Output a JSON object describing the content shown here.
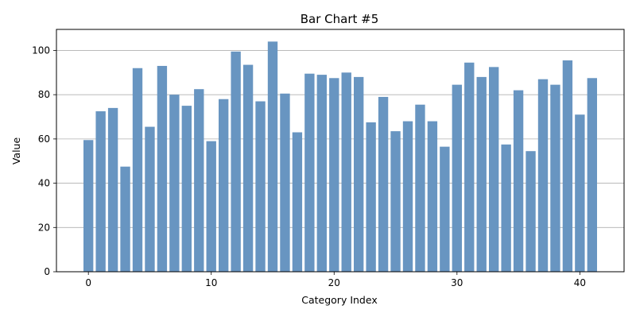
{
  "chart_data": {
    "type": "bar",
    "title": "Bar Chart #5",
    "xlabel": "Category Index",
    "ylabel": "Value",
    "x": [
      0,
      1,
      2,
      3,
      4,
      5,
      6,
      7,
      8,
      9,
      10,
      11,
      12,
      13,
      14,
      15,
      16,
      17,
      18,
      19,
      20,
      21,
      22,
      23,
      24,
      25,
      26,
      27,
      28,
      29,
      30,
      31,
      32,
      33,
      34,
      35,
      36,
      37,
      38,
      39,
      40,
      41
    ],
    "values": [
      59.5,
      72.5,
      74,
      47.5,
      92,
      65.5,
      93,
      80,
      75,
      82.5,
      59,
      78,
      99.5,
      93.5,
      77,
      104,
      80.5,
      63,
      89.5,
      89,
      87.5,
      90,
      88,
      67.5,
      79,
      63.5,
      68,
      75.5,
      68,
      56.5,
      84.5,
      94.5,
      88,
      92.5,
      57.5,
      82,
      54.5,
      87,
      84.5,
      95.5,
      71,
      87.5
    ],
    "xticks": [
      0,
      10,
      20,
      30,
      40
    ],
    "yticks": [
      0,
      20,
      40,
      60,
      80,
      100
    ],
    "xlim": [
      -2.6,
      43.6
    ],
    "ylim": [
      0,
      109.5
    ],
    "grid": "horizontal",
    "bar_color": "#6895c1"
  }
}
